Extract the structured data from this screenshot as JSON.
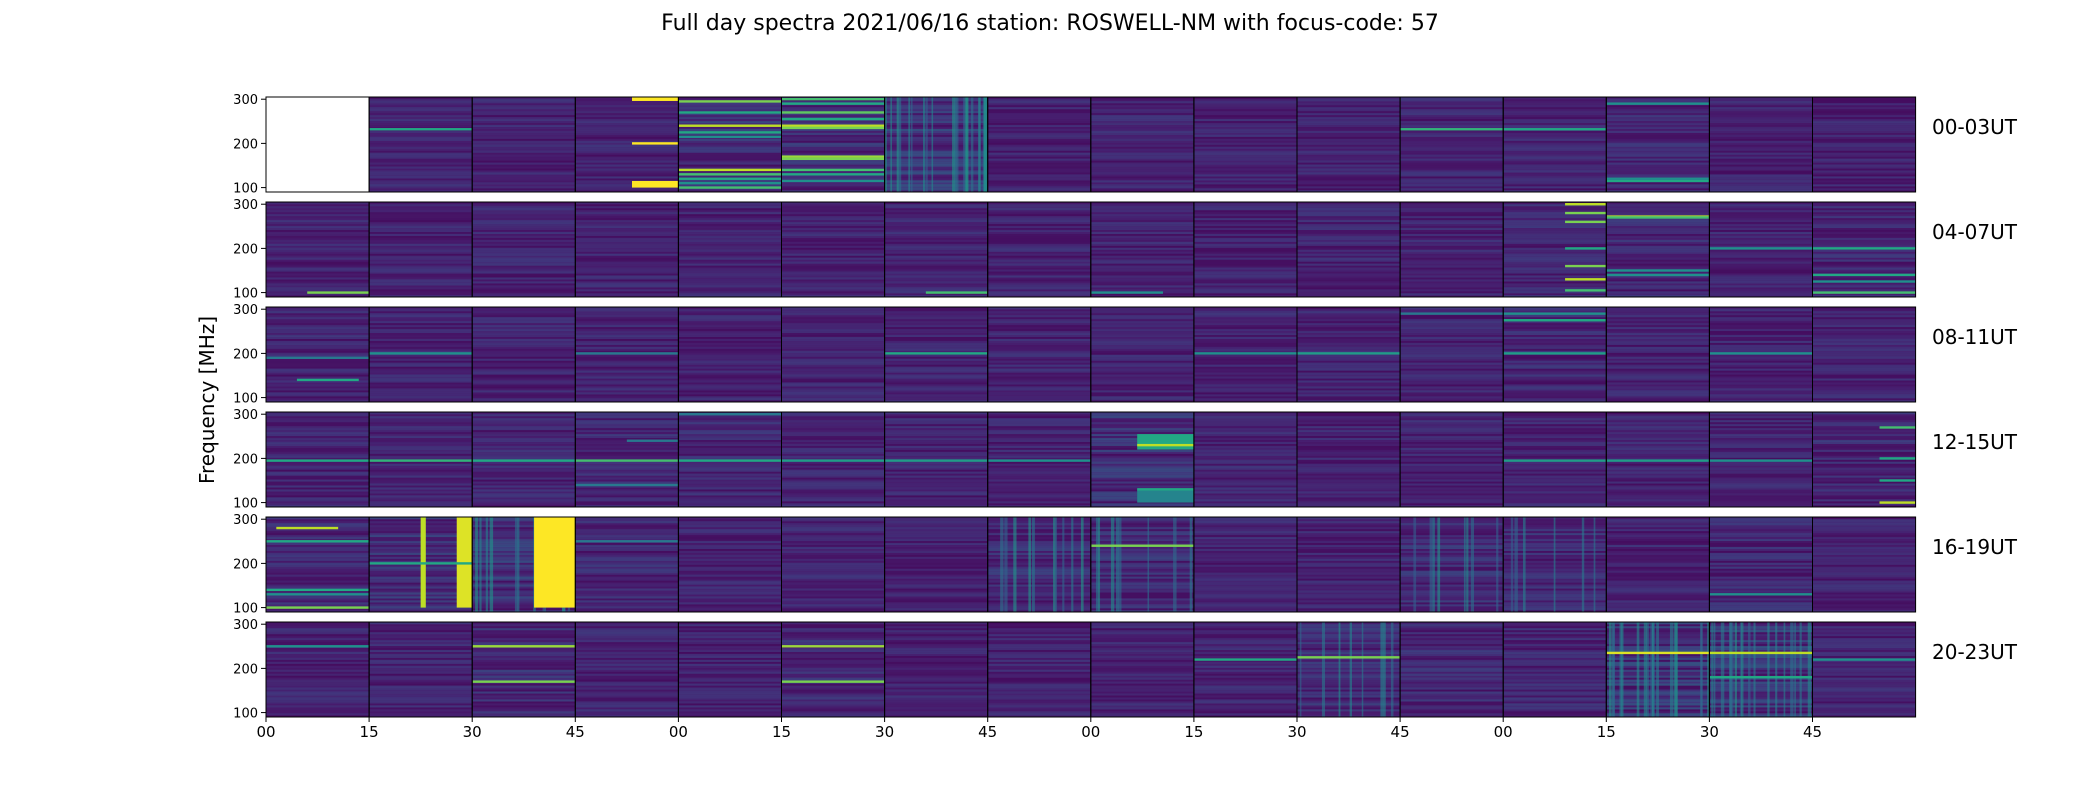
{
  "chart_data": {
    "type": "heatmap",
    "title": "Full day spectra 2021/06/16 station: ROSWELL-NM with focus-code: 57",
    "ylabel": "Frequency [MHz]",
    "xlabel": "",
    "ylim": [
      90,
      305
    ],
    "y_ticks": [
      100,
      200,
      300
    ],
    "x_tick_labels": [
      "00",
      "15",
      "30",
      "45",
      "00",
      "15",
      "30",
      "45",
      "00",
      "15",
      "30",
      "45",
      "00",
      "15",
      "30",
      "45"
    ],
    "rows": [
      {
        "label": "00-03UT",
        "panels": [
          {
            "empty": true
          },
          {
            "noise": 0.3,
            "lines": [
              [
                232,
                0.6
              ]
            ]
          },
          {
            "noise": 0.3
          },
          {
            "noise": 0.3,
            "blocks": [
              [
                0.55,
                1.0,
                100,
                115,
                1.0
              ],
              [
                0.55,
                1.0,
                296,
                305,
                1.0
              ]
            ],
            "lines": [
              [
                200,
                1.0,
                0.55,
                1.0
              ]
            ]
          },
          {
            "noise": 0.45,
            "lines": [
              [
                295,
                0.8
              ],
              [
                270,
                0.6
              ],
              [
                240,
                0.9
              ],
              [
                225,
                0.6
              ],
              [
                215,
                0.5
              ],
              [
                140,
                0.9
              ],
              [
                130,
                0.7
              ],
              [
                120,
                0.6
              ],
              [
                110,
                0.5
              ],
              [
                100,
                0.7
              ]
            ]
          },
          {
            "noise": 0.4,
            "lines": [
              [
                300,
                0.7
              ],
              [
                290,
                0.6
              ],
              [
                270,
                0.75
              ],
              [
                255,
                0.6
              ],
              [
                240,
                0.9
              ],
              [
                235,
                0.8
              ],
              [
                170,
                0.85
              ],
              [
                165,
                0.8
              ],
              [
                140,
                0.7
              ],
              [
                130,
                0.6
              ],
              [
                115,
                0.5
              ]
            ]
          },
          {
            "noise": 0.55,
            "streaks": 22
          },
          {
            "noise": 0.3
          },
          {
            "noise": 0.3
          },
          {
            "noise": 0.3
          },
          {
            "noise": 0.3
          },
          {
            "noise": 0.3,
            "lines": [
              [
                232,
                0.65
              ]
            ]
          },
          {
            "noise": 0.3,
            "lines": [
              [
                232,
                0.6
              ]
            ]
          },
          {
            "noise": 0.35,
            "lines": [
              [
                290,
                0.5
              ],
              [
                115,
                0.6
              ],
              [
                120,
                0.5
              ]
            ]
          },
          {
            "noise": 0.3
          },
          {
            "noise": 0.3
          }
        ]
      },
      {
        "label": "04-07UT",
        "panels": [
          {
            "noise": 0.3,
            "lines": [
              [
                100,
                0.8,
                0.4,
                1.0
              ]
            ]
          },
          {
            "noise": 0.3
          },
          {
            "noise": 0.3
          },
          {
            "noise": 0.3
          },
          {
            "noise": 0.3
          },
          {
            "noise": 0.3
          },
          {
            "noise": 0.3,
            "lines": [
              [
                100,
                0.7,
                0.4,
                1.0
              ]
            ]
          },
          {
            "noise": 0.3
          },
          {
            "noise": 0.3,
            "lines": [
              [
                100,
                0.5,
                0.0,
                0.7
              ]
            ]
          },
          {
            "noise": 0.3
          },
          {
            "noise": 0.3
          },
          {
            "noise": 0.3
          },
          {
            "noise": 0.35,
            "lines": [
              [
                300,
                0.9,
                0.6,
                1.0
              ],
              [
                280,
                0.8,
                0.6,
                1.0
              ],
              [
                260,
                0.8,
                0.6,
                1.0
              ],
              [
                200,
                0.6,
                0.6,
                1.0
              ],
              [
                160,
                0.8,
                0.6,
                1.0
              ],
              [
                130,
                0.9,
                0.6,
                1.0
              ],
              [
                105,
                0.7,
                0.6,
                1.0
              ]
            ]
          },
          {
            "noise": 0.35,
            "lines": [
              [
                272,
                0.9
              ],
              [
                270,
                0.7,
                0.0,
                1.0
              ],
              [
                150,
                0.5
              ],
              [
                140,
                0.5
              ]
            ]
          },
          {
            "noise": 0.3,
            "lines": [
              [
                200,
                0.5
              ]
            ]
          },
          {
            "noise": 0.35,
            "lines": [
              [
                200,
                0.6
              ],
              [
                140,
                0.6
              ],
              [
                125,
                0.5
              ],
              [
                100,
                0.7
              ]
            ]
          }
        ]
      },
      {
        "label": "08-11UT",
        "panels": [
          {
            "noise": 0.3,
            "lines": [
              [
                140,
                0.6,
                0.3,
                0.9
              ],
              [
                190,
                0.4
              ]
            ]
          },
          {
            "noise": 0.3,
            "lines": [
              [
                200,
                0.5
              ]
            ]
          },
          {
            "noise": 0.3
          },
          {
            "noise": 0.3,
            "lines": [
              [
                200,
                0.4
              ]
            ]
          },
          {
            "noise": 0.3
          },
          {
            "noise": 0.3
          },
          {
            "noise": 0.3,
            "lines": [
              [
                200,
                0.6
              ]
            ]
          },
          {
            "noise": 0.3
          },
          {
            "noise": 0.3
          },
          {
            "noise": 0.3,
            "lines": [
              [
                200,
                0.5
              ]
            ]
          },
          {
            "noise": 0.3,
            "lines": [
              [
                200,
                0.55
              ]
            ]
          },
          {
            "noise": 0.3,
            "lines": [
              [
                290,
                0.4
              ]
            ]
          },
          {
            "noise": 0.35,
            "lines": [
              [
                290,
                0.5
              ],
              [
                275,
                0.6
              ],
              [
                200,
                0.55
              ]
            ]
          },
          {
            "noise": 0.3
          },
          {
            "noise": 0.3,
            "lines": [
              [
                200,
                0.5
              ]
            ]
          },
          {
            "noise": 0.3
          }
        ]
      },
      {
        "label": "12-15UT",
        "panels": [
          {
            "noise": 0.3,
            "lines": [
              [
                195,
                0.6
              ]
            ]
          },
          {
            "noise": 0.3,
            "lines": [
              [
                195,
                0.65
              ]
            ]
          },
          {
            "noise": 0.3,
            "lines": [
              [
                195,
                0.6
              ]
            ]
          },
          {
            "noise": 0.35,
            "lines": [
              [
                195,
                0.7
              ],
              [
                240,
                0.4,
                0.5,
                1.0
              ],
              [
                140,
                0.4
              ]
            ]
          },
          {
            "noise": 0.35,
            "lines": [
              [
                195,
                0.6
              ],
              [
                300,
                0.4
              ]
            ]
          },
          {
            "noise": 0.3,
            "lines": [
              [
                195,
                0.55
              ]
            ]
          },
          {
            "noise": 0.3,
            "lines": [
              [
                195,
                0.55
              ]
            ]
          },
          {
            "noise": 0.3,
            "lines": [
              [
                195,
                0.5
              ]
            ]
          },
          {
            "noise": 0.45,
            "blocks": [
              [
                0.45,
                1.0,
                220,
                255,
                0.6
              ],
              [
                0.45,
                1.0,
                100,
                130,
                0.45
              ]
            ],
            "lines": [
              [
                230,
                0.9,
                0.45,
                1.0
              ],
              [
                130,
                0.6,
                0.45,
                1.0
              ]
            ]
          },
          {
            "noise": 0.3
          },
          {
            "noise": 0.3
          },
          {
            "noise": 0.3
          },
          {
            "noise": 0.3,
            "lines": [
              [
                195,
                0.55
              ]
            ]
          },
          {
            "noise": 0.3,
            "lines": [
              [
                195,
                0.55
              ]
            ]
          },
          {
            "noise": 0.3,
            "lines": [
              [
                195,
                0.5
              ]
            ]
          },
          {
            "noise": 0.35,
            "lines": [
              [
                270,
                0.7,
                0.65,
                1.0
              ],
              [
                200,
                0.6,
                0.65,
                1.0
              ],
              [
                150,
                0.6,
                0.65,
                1.0
              ],
              [
                100,
                0.9,
                0.65,
                1.0
              ]
            ]
          }
        ]
      },
      {
        "label": "16-19UT",
        "panels": [
          {
            "noise": 0.35,
            "lines": [
              [
                280,
                0.9,
                0.1,
                0.7
              ],
              [
                250,
                0.6
              ],
              [
                140,
                0.6
              ],
              [
                130,
                0.5
              ],
              [
                100,
                0.8
              ]
            ]
          },
          {
            "noise": 0.45,
            "blocks": [
              [
                0.5,
                0.55,
                100,
                305,
                0.9
              ],
              [
                0.85,
                1.0,
                100,
                305,
                0.95
              ]
            ],
            "lines": [
              [
                200,
                0.6
              ]
            ]
          },
          {
            "noise": 0.5,
            "streaks": 12,
            "blocks": [
              [
                0.6,
                1.0,
                100,
                305,
                1.0
              ]
            ]
          },
          {
            "noise": 0.35,
            "lines": [
              [
                250,
                0.4
              ]
            ]
          },
          {
            "noise": 0.3
          },
          {
            "noise": 0.3
          },
          {
            "noise": 0.25
          },
          {
            "noise": 0.4,
            "streaks": 10
          },
          {
            "noise": 0.4,
            "streaks": 8,
            "lines": [
              [
                240,
                0.8
              ]
            ]
          },
          {
            "noise": 0.3
          },
          {
            "noise": 0.3
          },
          {
            "noise": 0.4,
            "streaks": 8
          },
          {
            "noise": 0.4,
            "streaks": 6
          },
          {
            "noise": 0.3
          },
          {
            "noise": 0.35,
            "lines": [
              [
                130,
                0.5
              ]
            ]
          },
          {
            "noise": 0.3
          }
        ]
      },
      {
        "label": "20-23UT",
        "panels": [
          {
            "noise": 0.3,
            "lines": [
              [
                250,
                0.5
              ]
            ]
          },
          {
            "noise": 0.3
          },
          {
            "noise": 0.4,
            "lines": [
              [
                250,
                0.85
              ],
              [
                170,
                0.8
              ]
            ]
          },
          {
            "noise": 0.3
          },
          {
            "noise": 0.3
          },
          {
            "noise": 0.35,
            "lines": [
              [
                250,
                0.85
              ],
              [
                170,
                0.8
              ]
            ]
          },
          {
            "noise": 0.3
          },
          {
            "noise": 0.3
          },
          {
            "noise": 0.3
          },
          {
            "noise": 0.3,
            "lines": [
              [
                220,
                0.6
              ]
            ]
          },
          {
            "noise": 0.4,
            "streaks": 8,
            "lines": [
              [
                225,
                0.8
              ]
            ]
          },
          {
            "noise": 0.35
          },
          {
            "noise": 0.35
          },
          {
            "noise": 0.55,
            "streaks": 18,
            "lines": [
              [
                235,
                0.95
              ]
            ]
          },
          {
            "noise": 0.55,
            "streaks": 18,
            "lines": [
              [
                235,
                0.9
              ],
              [
                180,
                0.6
              ]
            ]
          },
          {
            "noise": 0.3,
            "lines": [
              [
                220,
                0.5
              ]
            ]
          }
        ]
      }
    ]
  }
}
